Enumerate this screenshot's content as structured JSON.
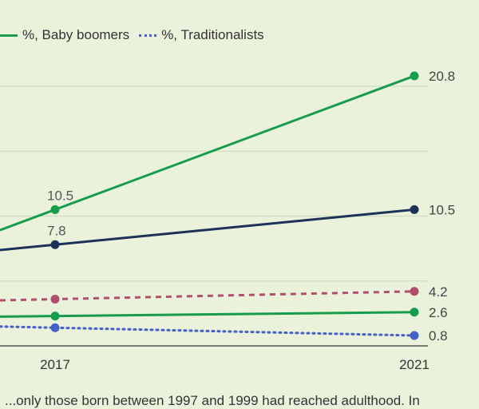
{
  "legend": [
    {
      "label": "%, Baby boomers",
      "color": "#169c4c",
      "dash": "solid"
    },
    {
      "label": "%, Traditionalists",
      "color": "#4660c8",
      "dash": "dotted"
    }
  ],
  "footnote": "...only those born between 1997 and 1999 had reached adulthood. In",
  "chart_data": {
    "type": "line",
    "x": [
      "2017",
      "2021"
    ],
    "ylim": [
      0,
      25
    ],
    "grid": true,
    "legend_position": "top-left",
    "series": [
      {
        "values": [
          10.5,
          20.8
        ],
        "color": "#169c4c",
        "dash": "solid",
        "labels": [
          "10.5",
          "20.8"
        ]
      },
      {
        "values": [
          7.8,
          10.5
        ],
        "color": "#1e3257",
        "dash": "solid",
        "labels": [
          "7.8",
          "10.5"
        ]
      },
      {
        "values": [
          3.6,
          4.2
        ],
        "color": "#b0506a",
        "dash": "dashed",
        "labels": [
          "",
          "4.2"
        ]
      },
      {
        "name": "%, Baby boomers",
        "values": [
          2.3,
          2.6
        ],
        "color": "#169c4c",
        "dash": "solid",
        "labels": [
          "",
          "2.6"
        ]
      },
      {
        "name": "%, Traditionalists",
        "values": [
          1.4,
          0.8
        ],
        "color": "#4660c8",
        "dash": "dotted",
        "labels": [
          "",
          "0.8"
        ]
      }
    ]
  }
}
